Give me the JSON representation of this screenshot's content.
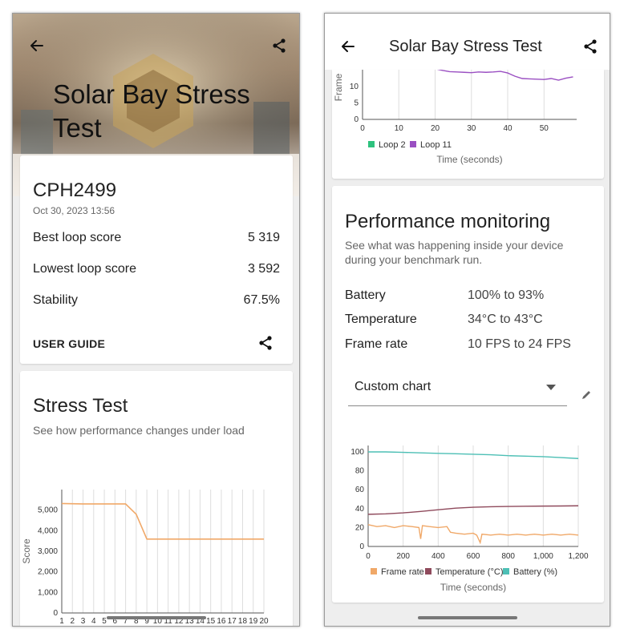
{
  "left_screen": {
    "title": "Solar Bay Stress Test",
    "device": {
      "name": "CPH2499",
      "date": "Oct 30, 2023 13:56"
    },
    "rows": [
      {
        "label": "Best loop score",
        "value": "5 319"
      },
      {
        "label": "Lowest loop score",
        "value": "3 592"
      },
      {
        "label": "Stability",
        "value": "67.5%"
      }
    ],
    "user_guide_label": "USER GUIDE",
    "stress_section": {
      "title": "Stress Test",
      "subtitle": "See how performance changes under load"
    },
    "icons": {
      "back": "back-arrow-icon",
      "share": "share-icon"
    }
  },
  "right_screen": {
    "title": "Solar Bay Stress Test",
    "performance": {
      "title": "Performance monitoring",
      "subtitle": "See what was happening inside your device during your benchmark run.",
      "rows": [
        {
          "label": "Battery",
          "value": "100% to 93%"
        },
        {
          "label": "Temperature",
          "value": "34°C to 43°C"
        },
        {
          "label": "Frame rate",
          "value": "10 FPS to 24 FPS"
        }
      ],
      "dropdown_value": "Custom chart"
    },
    "icons": {
      "back": "back-arrow-icon",
      "share": "share-icon",
      "edit": "pencil-icon",
      "dropdown": "chevron-down-icon"
    }
  },
  "chart_data": [
    {
      "type": "line",
      "ylabel": "Score",
      "x": [
        1,
        2,
        3,
        4,
        5,
        6,
        7,
        8,
        9,
        10,
        11,
        12,
        13,
        14,
        15,
        16,
        17,
        18,
        19,
        20
      ],
      "ylim": [
        0,
        6000
      ],
      "yticks": [
        "0",
        "1,000",
        "2,000",
        "3,000",
        "4,000",
        "5,000"
      ],
      "series": [
        {
          "values": [
            5319,
            5310,
            5300,
            5300,
            5300,
            5300,
            5300,
            4800,
            3592,
            3592,
            3592,
            3592,
            3592,
            3592,
            3592,
            3592,
            3592,
            3592,
            3592,
            3592
          ],
          "color": "#f0a868"
        }
      ],
      "grid": "vertical"
    },
    {
      "type": "line",
      "xlabel": "Time (seconds)",
      "ylabel": "Frame",
      "x_ticks": [
        "0",
        "10",
        "20",
        "30",
        "40",
        "50"
      ],
      "y_ticks": [
        "0",
        "5",
        "10"
      ],
      "xlim": [
        0,
        59
      ],
      "series": [
        {
          "name": "Loop 2",
          "color": "#2ec27e",
          "values": []
        },
        {
          "name": "Loop 11",
          "color": "#9a4fc2",
          "x": [
            20,
            22,
            24,
            26,
            28,
            30,
            32,
            34,
            36,
            38,
            40,
            42,
            44,
            46,
            48,
            50,
            52,
            54,
            56,
            58
          ],
          "values": [
            15.5,
            15,
            14.6,
            14.5,
            14.4,
            14.3,
            14.5,
            14.4,
            14.5,
            14.7,
            14.2,
            13.2,
            12.5,
            12.4,
            12.3,
            12.2,
            12.5,
            12.0,
            12.6,
            13.0
          ]
        }
      ],
      "legend": "bottom"
    },
    {
      "type": "line",
      "xlabel": "Time (seconds)",
      "xlim": [
        0,
        1200
      ],
      "ylim": [
        0,
        100
      ],
      "x_ticks": [
        "0",
        "200",
        "400",
        "600",
        "800",
        "1,000",
        "1,200"
      ],
      "y_ticks": [
        "0",
        "20",
        "40",
        "60",
        "80",
        "100"
      ],
      "series": [
        {
          "name": "Frame rate",
          "color": "#f0a868",
          "x": [
            0,
            50,
            100,
            150,
            200,
            250,
            290,
            300,
            310,
            350,
            400,
            450,
            470,
            500,
            550,
            600,
            620,
            640,
            650,
            700,
            750,
            800,
            850,
            900,
            950,
            1000,
            1050,
            1100,
            1150,
            1200
          ],
          "values": [
            23,
            21,
            22,
            20,
            22,
            21,
            20,
            8,
            22,
            21,
            20,
            21,
            15,
            14,
            13,
            14,
            12,
            4,
            13,
            12,
            13,
            12,
            13,
            12,
            13,
            12,
            13,
            12,
            13,
            12
          ]
        },
        {
          "name": "Temperature (°C)",
          "color": "#8f4a5c",
          "x": [
            0,
            100,
            200,
            300,
            400,
            500,
            600,
            700,
            800,
            900,
            1000,
            1100,
            1200
          ],
          "values": [
            34,
            34.5,
            35.5,
            37,
            38.8,
            40.5,
            41.5,
            42,
            42.3,
            42.5,
            42.7,
            42.8,
            43
          ]
        },
        {
          "name": "Battery (%)",
          "color": "#4dbfb5",
          "x": [
            0,
            100,
            200,
            300,
            400,
            500,
            600,
            700,
            800,
            900,
            1000,
            1100,
            1200
          ],
          "values": [
            100,
            100,
            99.5,
            99,
            98.5,
            98,
            97.5,
            97,
            96,
            95.5,
            95,
            94,
            93
          ]
        }
      ],
      "legend": "bottom"
    }
  ]
}
